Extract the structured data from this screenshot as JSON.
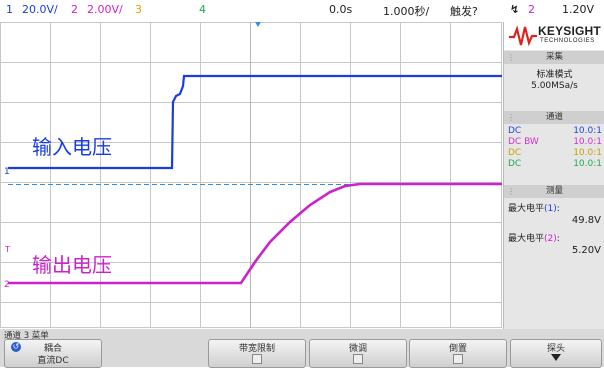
{
  "top_bar": {
    "ch1_number": "1",
    "ch1_scale": "20.0V/",
    "ch2_number": "2",
    "ch2_scale": "2.00V/",
    "ch3_number": "3",
    "ch4_number": "4",
    "time_offset": "0.0s",
    "time_scale": "1.000秒/",
    "trigger_state": "触发?",
    "trigger_channel": "2",
    "trigger_level": "1.20V"
  },
  "screen": {
    "input_label": "输入电压",
    "output_label": "输出电压",
    "marker_1": "1",
    "marker_2": "2",
    "marker_t": "T"
  },
  "side_panel": {
    "brand": "KEYSIGHT",
    "brand_sub": "TECHNOLOGIES",
    "acquire_title": "采集",
    "acquire_mode": "标准模式",
    "sample_rate": "5.00MSa/s",
    "channels_title": "通道",
    "channels": [
      {
        "coupling": "DC",
        "probe": "10.0:1",
        "color": "#2244dd"
      },
      {
        "coupling": "DC BW",
        "probe": "10.0:1",
        "color": "#cc33cc"
      },
      {
        "coupling": "DC",
        "probe": "10.0:1",
        "color": "#c9a200"
      },
      {
        "coupling": "DC",
        "probe": "10.0:1",
        "color": "#22aa55"
      }
    ],
    "measure_title": "测量",
    "meas1_label": "最大电平",
    "meas1_ch": "(1)",
    "meas1_colon": ":",
    "meas1_value": "49.8V",
    "meas2_label": "最大电平",
    "meas2_ch": "(2)",
    "meas2_colon": ":",
    "meas2_value": "5.20V"
  },
  "bottom_menu": {
    "title": "通道 3 菜单",
    "coupling_label": "耦合",
    "coupling_value": "直流DC",
    "bw_limit": "带宽限制",
    "fine": "微调",
    "invert": "倒置",
    "probe": "探头"
  },
  "colors": {
    "ch1": "#1a3de0",
    "ch2": "#cc22cc",
    "ch3": "#d4a800",
    "ch4": "#22aa55",
    "trigger": "#2a8fe8",
    "grid": "#c8c8c8"
  }
}
